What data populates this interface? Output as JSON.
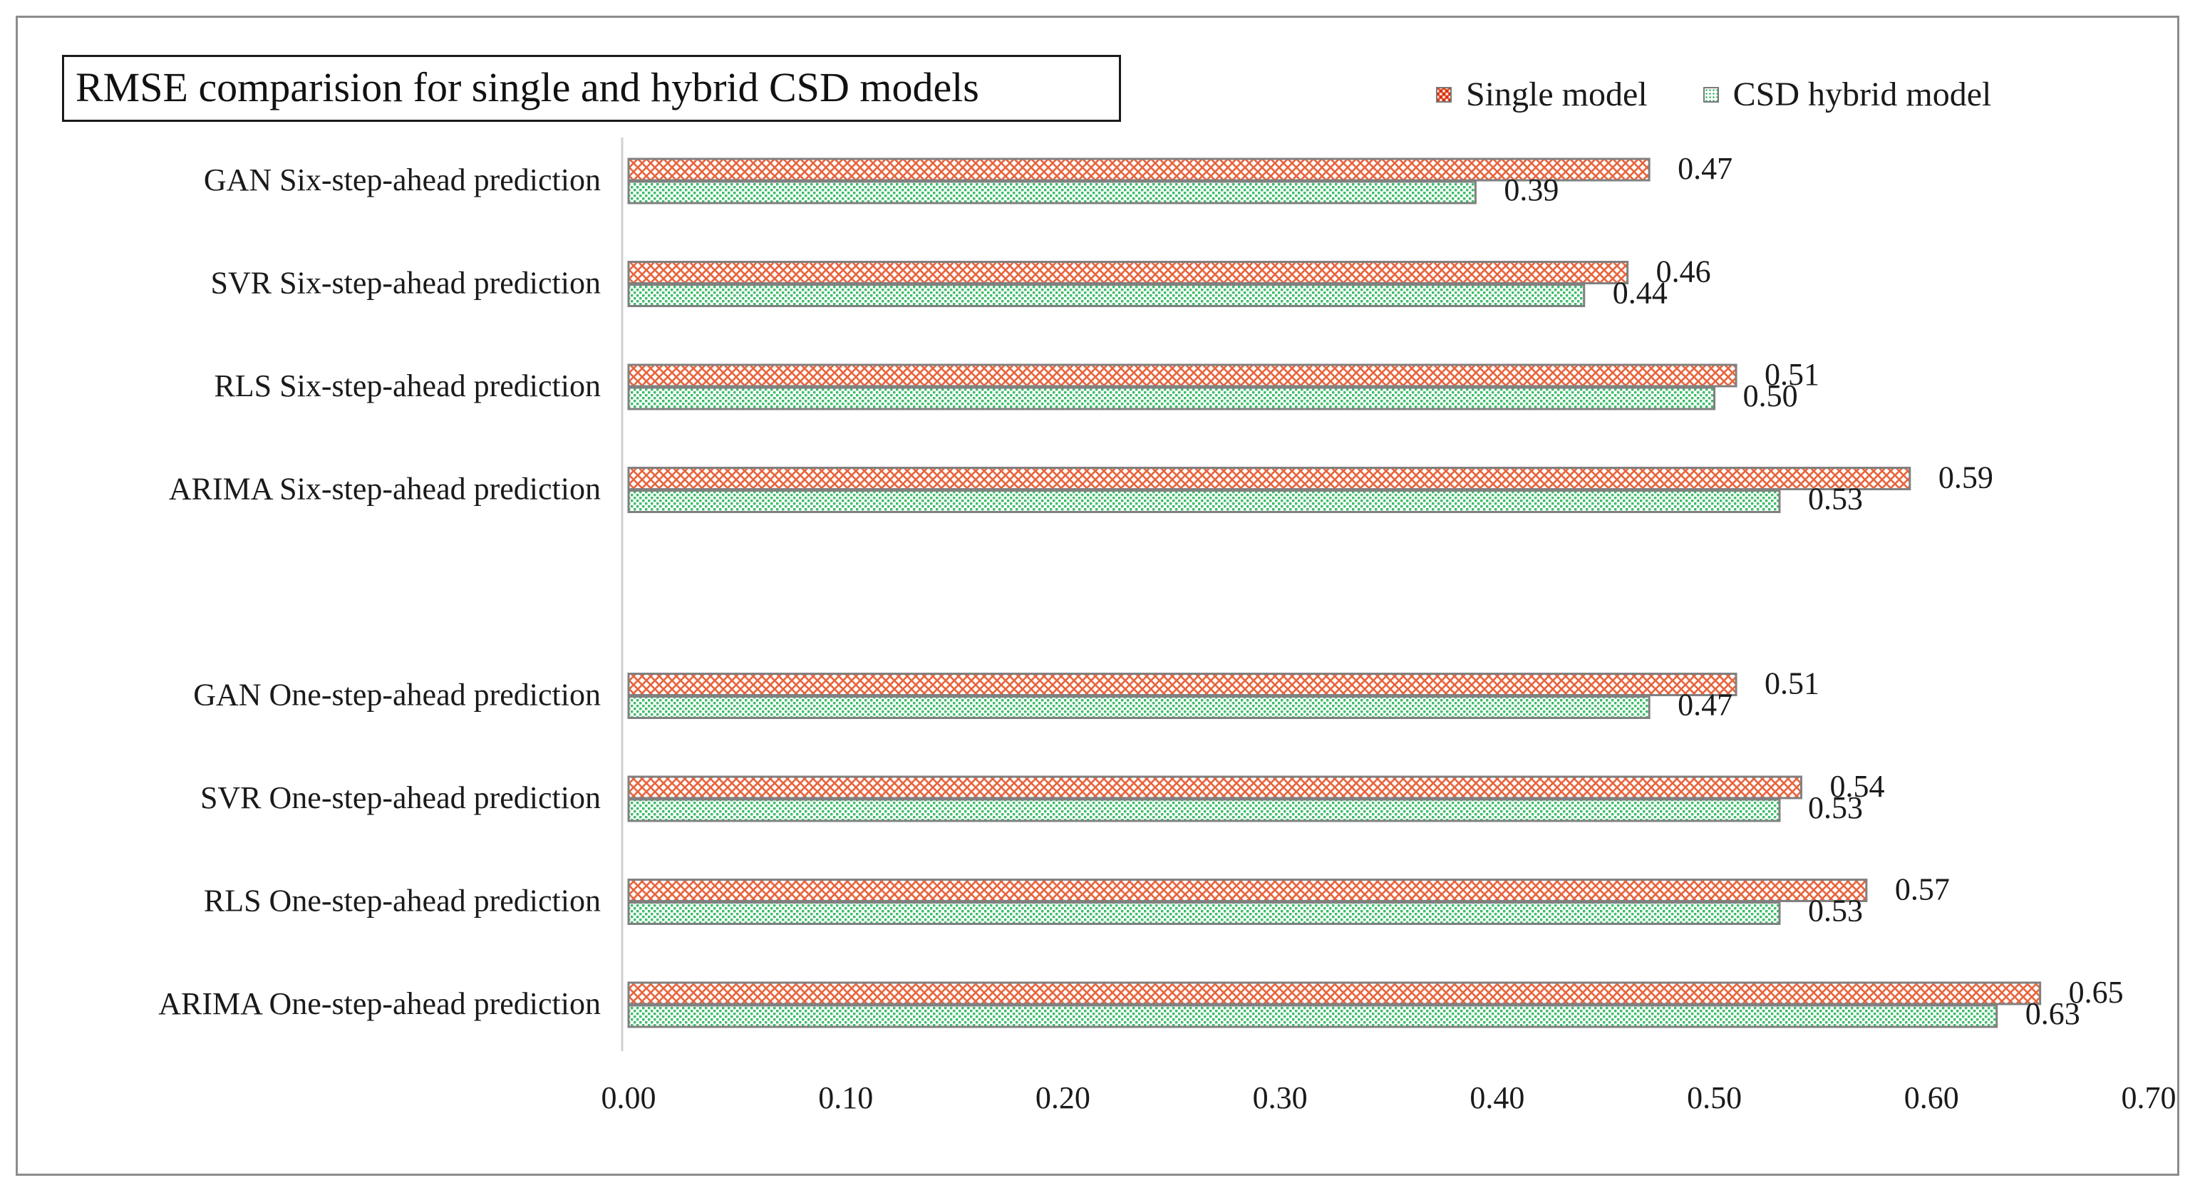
{
  "chart_data": {
    "type": "bar",
    "orientation": "horizontal",
    "title": "RMSE comparision for single and hybrid CSD models",
    "categories": [
      "GAN Six-step-ahead prediction",
      "SVR Six-step-ahead prediction",
      "RLS Six-step-ahead prediction",
      "ARIMA Six-step-ahead prediction",
      "",
      "GAN One-step-ahead prediction",
      "SVR One-step-ahead prediction",
      "RLS One-step-ahead prediction",
      "ARIMA One-step-ahead prediction"
    ],
    "series": [
      {
        "name": "Single model",
        "color": "#e8643c",
        "values": [
          0.47,
          0.46,
          0.51,
          0.59,
          null,
          0.51,
          0.54,
          0.57,
          0.65
        ],
        "labels": [
          "0.47",
          "0.46",
          "0.51",
          "0.59",
          "",
          "0.51",
          "0.54",
          "0.57",
          "0.65"
        ]
      },
      {
        "name": "CSD hybrid model",
        "color": "#3dbb6a",
        "values": [
          0.39,
          0.44,
          0.5,
          0.53,
          null,
          0.47,
          0.53,
          0.53,
          0.63
        ],
        "labels": [
          "0.39",
          "0.44",
          "0.50",
          "0.53",
          "",
          "0.47",
          "0.53",
          "0.53",
          "0.63"
        ]
      }
    ],
    "xlim": [
      0,
      0.7
    ],
    "xticks": [
      "0.00",
      "0.10",
      "0.20",
      "0.30",
      "0.40",
      "0.50",
      "0.60",
      "0.70"
    ],
    "xlabel": "",
    "ylabel": "",
    "grid": false,
    "legend_position": "top-right"
  }
}
